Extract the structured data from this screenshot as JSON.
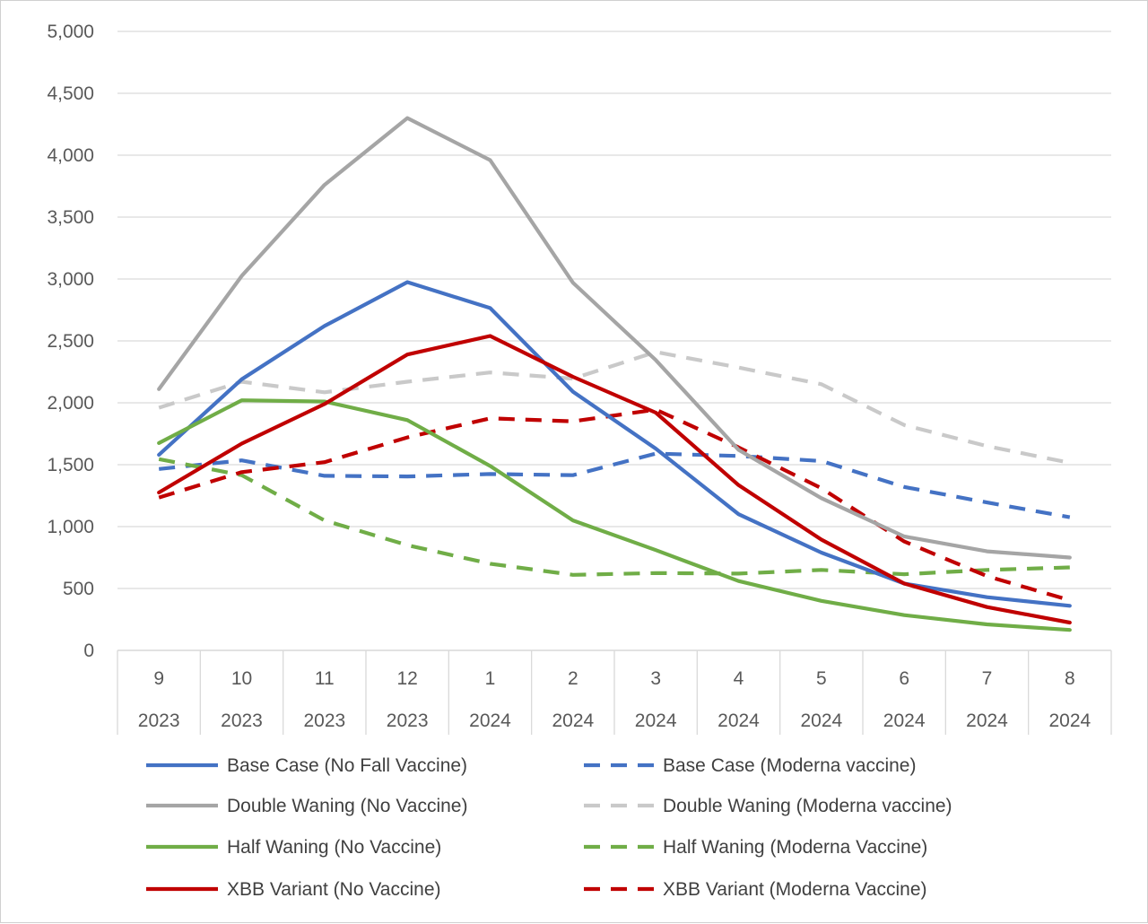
{
  "chart_data": {
    "type": "line",
    "title": "",
    "xlabel": "",
    "ylabel": "",
    "ylim": [
      0,
      5000
    ],
    "y_ticks": [
      0,
      500,
      1000,
      1500,
      2000,
      2500,
      3000,
      3500,
      4000,
      4500,
      5000
    ],
    "y_tick_labels": [
      "0",
      "500",
      "1,000",
      "1,500",
      "2,000",
      "2,500",
      "3,000",
      "3,500",
      "4,000",
      "4,500",
      "5,000"
    ],
    "categories": [
      {
        "month": "9",
        "year": "2023"
      },
      {
        "month": "10",
        "year": "2023"
      },
      {
        "month": "11",
        "year": "2023"
      },
      {
        "month": "12",
        "year": "2023"
      },
      {
        "month": "1",
        "year": "2024"
      },
      {
        "month": "2",
        "year": "2024"
      },
      {
        "month": "3",
        "year": "2024"
      },
      {
        "month": "4",
        "year": "2024"
      },
      {
        "month": "5",
        "year": "2024"
      },
      {
        "month": "6",
        "year": "2024"
      },
      {
        "month": "7",
        "year": "2024"
      },
      {
        "month": "8",
        "year": "2024"
      }
    ],
    "grid": true,
    "legend_position": "bottom",
    "series": [
      {
        "name": "Base Case (No Fall Vaccine)",
        "color": "#4472c4",
        "style": "solid",
        "values": [
          1580,
          2190,
          2620,
          2975,
          2765,
          2090,
          1630,
          1100,
          790,
          540,
          430,
          360
        ]
      },
      {
        "name": "Base Case (Moderna vaccine)",
        "color": "#4472c4",
        "style": "dashed",
        "values": [
          1465,
          1535,
          1410,
          1405,
          1425,
          1415,
          1590,
          1570,
          1530,
          1320,
          1195,
          1075
        ]
      },
      {
        "name": "Double Waning (No Vaccine)",
        "color": "#a5a5a5",
        "style": "solid",
        "values": [
          2110,
          3025,
          3760,
          4300,
          3960,
          2970,
          2345,
          1620,
          1230,
          920,
          800,
          750
        ]
      },
      {
        "name": "Double Waning (Moderna vaccine)",
        "color": "#c9c9c9",
        "style": "dashed",
        "values": [
          1960,
          2170,
          2085,
          2170,
          2245,
          2195,
          2410,
          2285,
          2150,
          1820,
          1650,
          1515
        ]
      },
      {
        "name": "Half Waning (No Vaccine)",
        "color": "#70ad47",
        "style": "solid",
        "values": [
          1675,
          2020,
          2010,
          1860,
          1490,
          1050,
          810,
          560,
          400,
          285,
          210,
          165
        ]
      },
      {
        "name": "Half Waning (Moderna Vaccine)",
        "color": "#70ad47",
        "style": "dashed",
        "values": [
          1545,
          1415,
          1050,
          850,
          700,
          610,
          625,
          620,
          650,
          615,
          650,
          670
        ]
      },
      {
        "name": "XBB Variant (No Vaccine)",
        "color": "#c00000",
        "style": "solid",
        "values": [
          1275,
          1670,
          1990,
          2390,
          2540,
          2210,
          1920,
          1335,
          895,
          540,
          350,
          225
        ]
      },
      {
        "name": "XBB Variant (Moderna Vaccine)",
        "color": "#c00000",
        "style": "dashed",
        "values": [
          1235,
          1440,
          1520,
          1720,
          1875,
          1850,
          1945,
          1640,
          1310,
          880,
          600,
          405
        ]
      }
    ]
  }
}
